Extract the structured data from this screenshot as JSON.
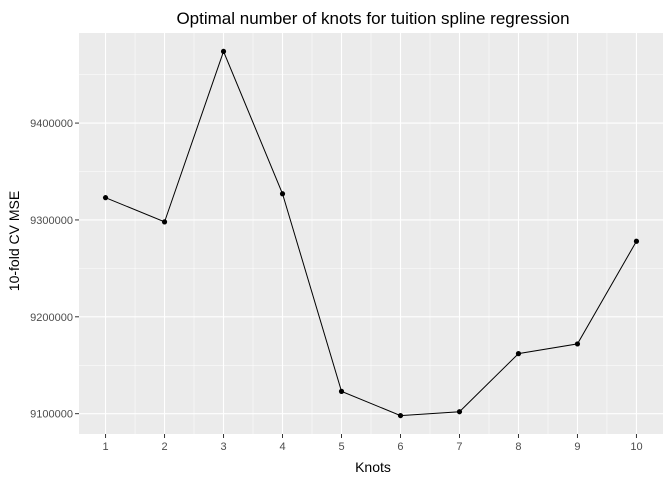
{
  "chart_data": {
    "type": "line",
    "title": "Optimal number of knots for tuition spline regression",
    "xlabel": "Knots",
    "ylabel": "10-fold CV MSE",
    "x": [
      1,
      2,
      3,
      4,
      5,
      6,
      7,
      8,
      9,
      10
    ],
    "y": [
      9323000,
      9298000,
      9474000,
      9327000,
      9123000,
      9098000,
      9102000,
      9162000,
      9172000,
      9278000
    ],
    "xticks": [
      1,
      2,
      3,
      4,
      5,
      6,
      7,
      8,
      9,
      10
    ],
    "xtick_labels": [
      "1",
      "2",
      "3",
      "4",
      "5",
      "6",
      "7",
      "8",
      "9",
      "10"
    ],
    "yticks": [
      9100000,
      9200000,
      9300000,
      9400000
    ],
    "ytick_labels": [
      "9100000",
      "9200000",
      "9300000",
      "9400000"
    ],
    "xlim": [
      0.55,
      10.45
    ],
    "ylim": [
      9079000,
      9493000
    ],
    "grid": true,
    "legend": "none",
    "colors": {
      "panel_background": "#ebebeb",
      "grid": "#ffffff",
      "line": "#000000",
      "point": "#000000"
    }
  }
}
